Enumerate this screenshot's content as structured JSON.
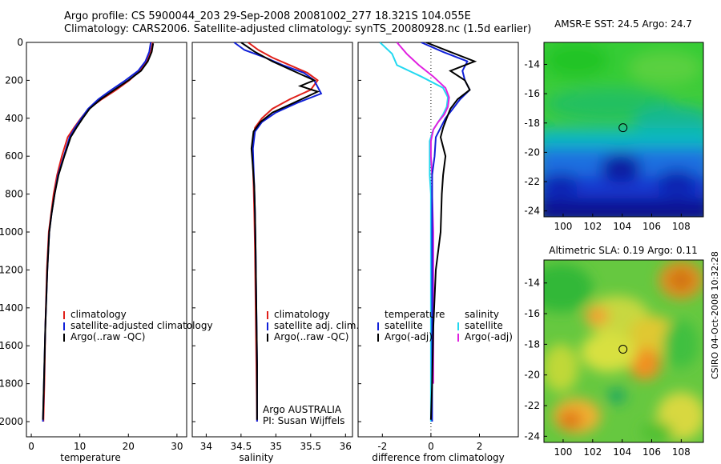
{
  "header": {
    "line1": "Argo profile: CS 5900044_203 29-Sep-2008 20081002_277 18.321S 104.055E",
    "line2": "Climatology: CARS2006. Satellite-adjusted climatology: synTS_20080928.nc (1.5d earlier)"
  },
  "stamp": "CSIRO 04-Oct-2008 10:32:28",
  "colors": {
    "climatology": "#e0201a",
    "satellite": "#1020d8",
    "argo": "#000000",
    "cyan": "#22d8f0",
    "magenta": "#e020e0"
  },
  "chart_data": [
    {
      "type": "line",
      "title": "",
      "xlabel": "temperature",
      "ylabel": "",
      "xlim": [
        -1,
        32
      ],
      "ylim": [
        2080,
        0
      ],
      "xticks": [
        "0",
        "10",
        "20",
        "30"
      ],
      "xtick_values": [
        0,
        10,
        20,
        30
      ],
      "yticks": [
        "0",
        "200",
        "400",
        "600",
        "800",
        "1000",
        "1200",
        "1400",
        "1600",
        "1800",
        "2000"
      ],
      "legend": [
        "climatology",
        "satellite-adjusted climatology",
        "Argo(..raw -QC)"
      ],
      "legend_position": "lower-right",
      "series": [
        {
          "name": "climatology",
          "color": "#e0201a",
          "x": [
            25,
            24.6,
            23.7,
            22.3,
            20.2,
            17.5,
            14.5,
            11.8,
            10.2,
            8.8,
            7.5,
            6.3,
            5.3,
            4.6,
            4.1,
            3.6,
            3.2,
            2.9,
            2.7,
            2.5
          ],
          "y": [
            0,
            50,
            100,
            150,
            200,
            250,
            300,
            350,
            400,
            450,
            500,
            600,
            700,
            800,
            900,
            1000,
            1200,
            1500,
            1800,
            2000
          ]
        },
        {
          "name": "satellite-adjusted climatology",
          "color": "#1020d8",
          "x": [
            24.6,
            24.3,
            23.5,
            22,
            19.4,
            16.5,
            13.8,
            11.7,
            10.3,
            9,
            7.9,
            6.7,
            5.5,
            4.8,
            4.2,
            3.7,
            3.3,
            2.9,
            2.6,
            2.4
          ],
          "y": [
            0,
            50,
            100,
            150,
            200,
            250,
            300,
            350,
            400,
            450,
            500,
            600,
            700,
            800,
            900,
            1000,
            1200,
            1500,
            1800,
            2000
          ]
        },
        {
          "name": "Argo(..raw -QC)",
          "color": "#000000",
          "x": [
            25.1,
            24.8,
            24,
            22.6,
            20,
            17.1,
            14.3,
            12,
            10.6,
            9.3,
            8.1,
            6.8,
            5.6,
            4.8,
            4.2,
            3.7,
            3.3,
            2.9,
            2.6,
            2.4
          ],
          "y": [
            5,
            50,
            100,
            150,
            200,
            250,
            300,
            350,
            400,
            450,
            500,
            600,
            700,
            800,
            900,
            1000,
            1200,
            1500,
            1800,
            1990
          ]
        }
      ]
    },
    {
      "type": "line",
      "title": "",
      "xlabel": "salinity",
      "ylabel": "",
      "xlim": [
        33.8,
        36.1
      ],
      "ylim": [
        2080,
        0
      ],
      "xticks": [
        "34",
        "34.5",
        "35",
        "35.5",
        "36"
      ],
      "xtick_values": [
        34,
        34.5,
        35,
        35.5,
        36
      ],
      "legend": [
        "climatology",
        "satellite adj. clim.",
        "Argo(..raw -QC)"
      ],
      "legend_position": "lower-right",
      "annotations": [
        "Argo AUSTRALIA",
        "PI: Susan Wijffels"
      ],
      "series": [
        {
          "name": "climatology",
          "color": "#e0201a",
          "x": [
            34.6,
            34.75,
            34.95,
            35.2,
            35.45,
            35.6,
            35.5,
            35.2,
            34.95,
            34.8,
            34.7,
            34.66,
            34.67,
            34.68,
            34.69,
            34.7,
            34.71,
            34.72,
            34.73
          ],
          "y": [
            0,
            40,
            80,
            120,
            160,
            200,
            250,
            300,
            350,
            400,
            450,
            550,
            650,
            750,
            900,
            1100,
            1400,
            1700,
            2000
          ]
        },
        {
          "name": "satellite adj. clim.",
          "color": "#1020d8",
          "x": [
            34.4,
            34.55,
            34.85,
            35.1,
            35.4,
            35.55,
            35.65,
            35.3,
            35,
            34.8,
            34.7,
            34.67,
            34.68,
            34.69,
            34.7,
            34.71,
            34.72,
            34.73,
            34.73
          ],
          "y": [
            0,
            40,
            80,
            120,
            160,
            200,
            270,
            320,
            370,
            420,
            470,
            560,
            660,
            760,
            900,
            1100,
            1400,
            1700,
            2000
          ]
        },
        {
          "name": "Argo(..raw -QC)",
          "color": "#000000",
          "x": [
            34.5,
            34.7,
            34.95,
            35.25,
            35.55,
            35.35,
            35.6,
            35.25,
            34.95,
            34.78,
            34.68,
            34.65,
            34.67,
            34.69,
            34.7,
            34.71,
            34.72,
            34.73,
            34.73
          ],
          "y": [
            0,
            50,
            100,
            150,
            200,
            230,
            260,
            320,
            370,
            420,
            470,
            560,
            660,
            760,
            900,
            1100,
            1400,
            1700,
            1990
          ]
        }
      ]
    },
    {
      "type": "line",
      "title": "",
      "xlabel": "difference from climatology",
      "ylabel": "",
      "xlim": [
        -3,
        3.6
      ],
      "ylim": [
        2080,
        0
      ],
      "xticks": [
        "-2",
        "0",
        "2"
      ],
      "xtick_values": [
        -2,
        0,
        2
      ],
      "legend": [
        "temperature",
        "satellite",
        "Argo(-adj)",
        "salinity",
        "satellite",
        "Argo(-adj)"
      ],
      "legend_position": "lower-center",
      "series": [
        {
          "name": "temperature satellite",
          "color": "#1020d8",
          "x": [
            -0.4,
            0.5,
            1.5,
            1.3,
            1.4,
            1.6,
            1.2,
            0.9,
            0.6,
            0.4,
            0.2,
            0.15,
            0.05,
            0.05,
            0.05,
            0.05,
            0.05,
            0.05,
            0.05
          ],
          "y": [
            0,
            50,
            100,
            150,
            200,
            250,
            300,
            350,
            400,
            450,
            500,
            600,
            700,
            800,
            1000,
            1200,
            1500,
            1800,
            2000
          ]
        },
        {
          "name": "temperature Argo(-adj)",
          "color": "#000000",
          "x": [
            -0.2,
            0.8,
            1.8,
            0.8,
            1.4,
            1.6,
            1.1,
            0.8,
            0.65,
            0.5,
            0.4,
            0.6,
            0.5,
            0.45,
            0.4,
            0.2,
            0.1,
            0.05,
            0.0
          ],
          "y": [
            0,
            50,
            100,
            150,
            200,
            250,
            300,
            350,
            400,
            450,
            500,
            600,
            700,
            800,
            1000,
            1200,
            1500,
            1800,
            1990
          ]
        },
        {
          "name": "salinity satellite",
          "color": "#22d8f0",
          "x": [
            -2.1,
            -1.6,
            -1.4,
            -0.4,
            0.5,
            0.7,
            0.65,
            0.5,
            0.3,
            0.1,
            -0.05,
            -0.05,
            -0.05,
            0,
            0,
            0,
            0,
            0,
            0
          ],
          "y": [
            0,
            60,
            120,
            180,
            240,
            290,
            340,
            380,
            420,
            460,
            520,
            600,
            700,
            800,
            1000,
            1200,
            1500,
            1800,
            2000
          ]
        },
        {
          "name": "salinity Argo(-adj)",
          "color": "#e020e0",
          "x": [
            -1.4,
            -1.0,
            -0.5,
            0.1,
            0.6,
            0.75,
            0.7,
            0.55,
            0.3,
            0.1,
            0.0,
            0.0,
            0.05,
            0.05,
            0.1,
            0.1,
            0.1,
            0.1,
            0.1
          ],
          "y": [
            0,
            60,
            120,
            180,
            240,
            290,
            340,
            380,
            420,
            460,
            520,
            600,
            700,
            800,
            1000,
            1200,
            1400,
            1600,
            1800
          ]
        }
      ]
    },
    {
      "type": "heatmap",
      "title": "AMSR-E SST: 24.5 Argo: 24.7",
      "xlim": [
        98.7,
        109.5
      ],
      "ylim": [
        -24.4,
        -12.5
      ],
      "xticks": [
        "100",
        "102",
        "104",
        "106",
        "108"
      ],
      "xtick_values": [
        100,
        102,
        104,
        106,
        108
      ],
      "yticks": [
        "-14",
        "-16",
        "-18",
        "-20",
        "-22",
        "-24"
      ],
      "ytick_values": [
        -14,
        -16,
        -18,
        -20,
        -22,
        -24
      ],
      "marker": {
        "lon": 104.055,
        "lat": -18.321
      },
      "palette": "green (north) to blue (south), warm SST north"
    },
    {
      "type": "heatmap",
      "title": "Altimetric SLA: 0.19 Argo: 0.11",
      "xlim": [
        98.7,
        109.5
      ],
      "ylim": [
        -24.4,
        -12.5
      ],
      "xticks": [
        "100",
        "102",
        "104",
        "106",
        "108"
      ],
      "xtick_values": [
        100,
        102,
        104,
        106,
        108
      ],
      "yticks": [
        "-14",
        "-16",
        "-18",
        "-20",
        "-22",
        "-24"
      ],
      "ytick_values": [
        -14,
        -16,
        -18,
        -20,
        -22,
        -24
      ],
      "marker": {
        "lon": 104.055,
        "lat": -18.321
      },
      "palette": "green background with yellow/orange positive anomalies"
    }
  ]
}
